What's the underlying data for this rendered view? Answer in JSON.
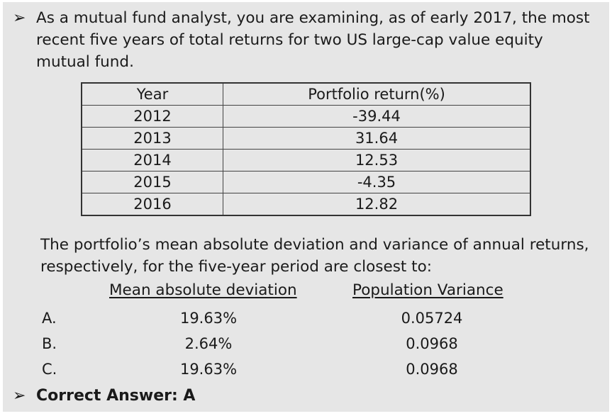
{
  "intro": {
    "bullet": "➢",
    "text": "As a mutual fund analyst, you are examining, as of early 2017, the most recent five years of total returns for two US large-cap value equity mutual fund."
  },
  "returns_table": {
    "headers": [
      "Year",
      "Portfolio return(%)"
    ],
    "rows": [
      [
        "2012",
        "-39.44"
      ],
      [
        "2013",
        "31.64"
      ],
      [
        "2014",
        "12.53"
      ],
      [
        "2015",
        "-4.35"
      ],
      [
        "2016",
        "12.82"
      ]
    ]
  },
  "question": {
    "text": "The portfolio’s mean absolute deviation and variance of annual returns, respectively, for the five-year period are closest to:",
    "column_mad": "Mean absolute deviation",
    "column_var": "Population Variance"
  },
  "options": [
    {
      "letter": "A.",
      "mad": "19.63%",
      "var": "0.05724"
    },
    {
      "letter": "B.",
      "mad": "2.64%",
      "var": "0.0968"
    },
    {
      "letter": "C.",
      "mad": "19.63%",
      "var": "0.0968"
    }
  ],
  "answer": {
    "bullet": "➢",
    "text": "Correct Answer: A"
  }
}
